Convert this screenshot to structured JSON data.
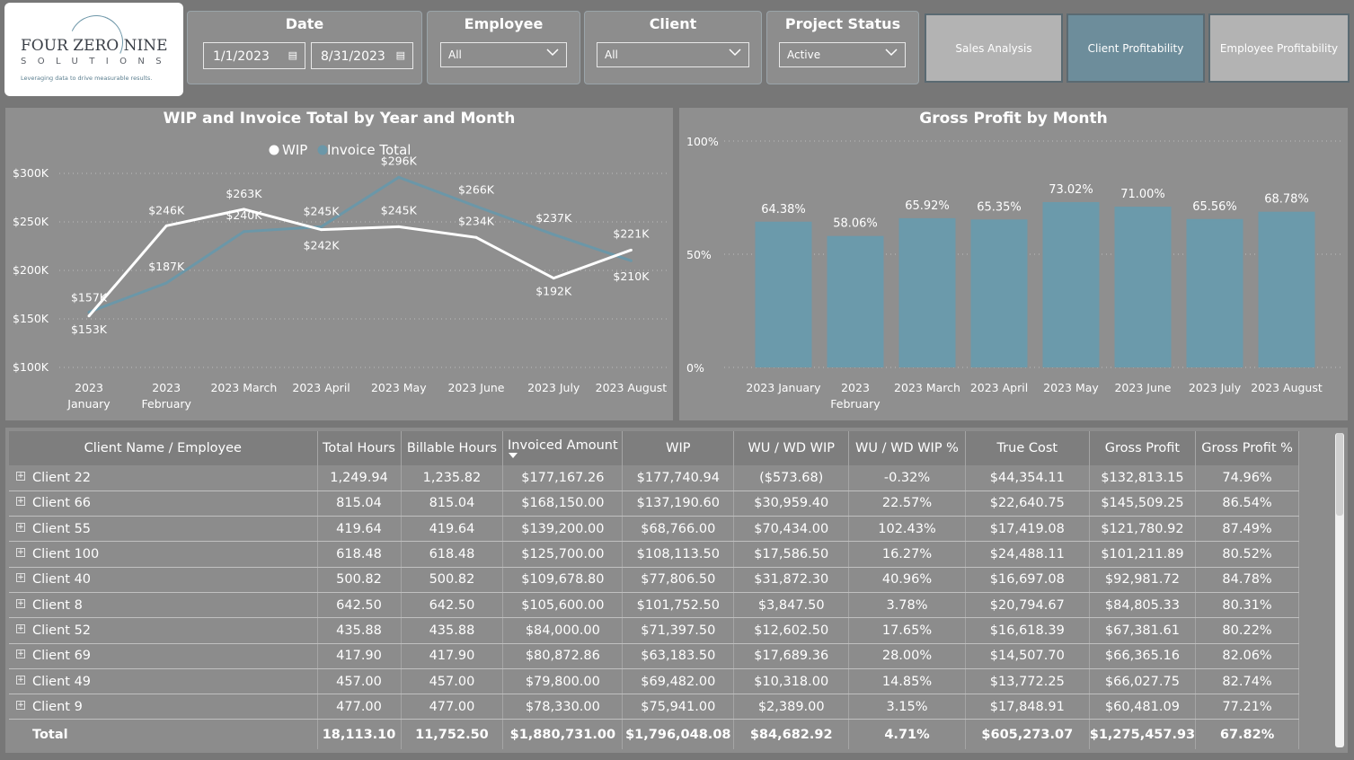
{
  "logo": {
    "line1": "FOUR ZERO NINE",
    "line2": "SOLUTIONS",
    "tagline": "Leveraging data to drive measurable results."
  },
  "filters": {
    "date": {
      "title": "Date",
      "start": "1/1/2023",
      "end": "8/31/2023"
    },
    "employee": {
      "title": "Employee",
      "value": "All"
    },
    "client": {
      "title": "Client",
      "value": "All"
    },
    "project_status": {
      "title": "Project Status",
      "value": "Active"
    }
  },
  "nav": {
    "sales": "Sales Analysis",
    "client": "Client Profitability",
    "employee": "Employee Profitability"
  },
  "colors": {
    "background": "#777777",
    "panel": "#8f8f8f",
    "wip_line": "#ffffff",
    "invoice_line": "#6b97a8",
    "bar": "#6b9aab",
    "active_nav": "#6d8d9b",
    "inactive_nav": "#b3b3b3"
  },
  "chart_data": [
    {
      "type": "line",
      "title": "WIP and Invoice Total by Year and Month",
      "legend": [
        "WIP",
        "Invoice Total"
      ],
      "legend_position": "top-center",
      "categories": [
        "2023 January",
        "2023 February",
        "2023 March",
        "2023 April",
        "2023 May",
        "2023 June",
        "2023 July",
        "2023 August"
      ],
      "yticks": [
        "$100K",
        "$150K",
        "$200K",
        "$250K",
        "$300K"
      ],
      "ylim": [
        100,
        300
      ],
      "series": [
        {
          "name": "WIP",
          "values": [
            153,
            246,
            263,
            242,
            245,
            234,
            192,
            221
          ],
          "labels": [
            "$153K",
            "$246K",
            "$263K",
            "$242K",
            "$245K",
            "$234K",
            "$192K",
            "$221K"
          ]
        },
        {
          "name": "Invoice Total",
          "values": [
            157,
            187,
            240,
            245,
            296,
            266,
            237,
            210
          ],
          "labels": [
            "$157K",
            "$187K",
            "$240K",
            "$245K",
            "$296K",
            "$266K",
            "$237K",
            "$210K"
          ]
        }
      ],
      "grid": true
    },
    {
      "type": "bar",
      "title": "Gross Profit by Month",
      "categories": [
        "2023 January",
        "2023 February",
        "2023 March",
        "2023 April",
        "2023 May",
        "2023 June",
        "2023 July",
        "2023 August"
      ],
      "values": [
        64.38,
        58.06,
        65.92,
        65.35,
        73.02,
        71.0,
        65.56,
        68.78
      ],
      "labels": [
        "64.38%",
        "58.06%",
        "65.92%",
        "65.35%",
        "73.02%",
        "71.00%",
        "65.56%",
        "68.78%"
      ],
      "yticks": [
        "0%",
        "50%",
        "100%"
      ],
      "ylim": [
        0,
        100
      ],
      "grid": true
    }
  ],
  "table": {
    "columns": [
      "Client Name / Employee",
      "Total Hours",
      "Billable Hours",
      "Invoiced Amount",
      "WIP",
      "WU / WD WIP",
      "WU / WD WIP %",
      "True Cost",
      "Gross Profit",
      "Gross Profit %"
    ],
    "rows": [
      [
        "Client 22",
        "1,249.94",
        "1,235.82",
        "$177,167.26",
        "$177,740.94",
        "($573.68)",
        "-0.32%",
        "$44,354.11",
        "$132,813.15",
        "74.96%"
      ],
      [
        "Client 66",
        "815.04",
        "815.04",
        "$168,150.00",
        "$137,190.60",
        "$30,959.40",
        "22.57%",
        "$22,640.75",
        "$145,509.25",
        "86.54%"
      ],
      [
        "Client 55",
        "419.64",
        "419.64",
        "$139,200.00",
        "$68,766.00",
        "$70,434.00",
        "102.43%",
        "$17,419.08",
        "$121,780.92",
        "87.49%"
      ],
      [
        "Client 100",
        "618.48",
        "618.48",
        "$125,700.00",
        "$108,113.50",
        "$17,586.50",
        "16.27%",
        "$24,488.11",
        "$101,211.89",
        "80.52%"
      ],
      [
        "Client 40",
        "500.82",
        "500.82",
        "$109,678.80",
        "$77,806.50",
        "$31,872.30",
        "40.96%",
        "$16,697.08",
        "$92,981.72",
        "84.78%"
      ],
      [
        "Client 8",
        "642.50",
        "642.50",
        "$105,600.00",
        "$101,752.50",
        "$3,847.50",
        "3.78%",
        "$20,794.67",
        "$84,805.33",
        "80.31%"
      ],
      [
        "Client 52",
        "435.88",
        "435.88",
        "$84,000.00",
        "$71,397.50",
        "$12,602.50",
        "17.65%",
        "$16,618.39",
        "$67,381.61",
        "80.22%"
      ],
      [
        "Client 69",
        "417.90",
        "417.90",
        "$80,872.86",
        "$63,183.50",
        "$17,689.36",
        "28.00%",
        "$14,507.70",
        "$66,365.16",
        "82.06%"
      ],
      [
        "Client 49",
        "457.00",
        "457.00",
        "$79,800.00",
        "$69,482.00",
        "$10,318.00",
        "14.85%",
        "$13,772.25",
        "$66,027.75",
        "82.74%"
      ],
      [
        "Client 9",
        "477.00",
        "477.00",
        "$78,330.00",
        "$75,941.00",
        "$2,389.00",
        "3.15%",
        "$17,848.91",
        "$60,481.09",
        "77.21%"
      ]
    ],
    "total": [
      "Total",
      "18,113.10",
      "11,752.50",
      "$1,880,731.00",
      "$1,796,048.08",
      "$84,682.92",
      "4.71%",
      "$605,273.07",
      "$1,275,457.93",
      "67.82%"
    ]
  }
}
